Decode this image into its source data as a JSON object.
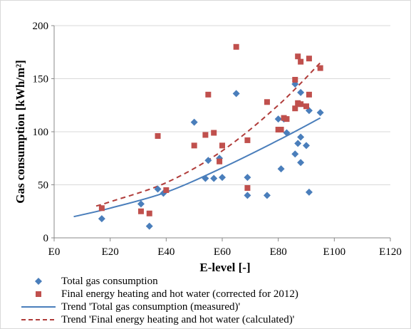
{
  "chart_data": {
    "type": "scatter",
    "title": "",
    "xlabel": "E-level [-]",
    "ylabel": "Gas consumption [kWh/m²]",
    "xlim": [
      0,
      120
    ],
    "ylim": [
      0,
      200
    ],
    "x_ticks": [
      0,
      20,
      40,
      60,
      80,
      100,
      120
    ],
    "x_tick_labels": [
      "E0",
      "E20",
      "E40",
      "E60",
      "E80",
      "E100",
      "E120"
    ],
    "y_ticks": [
      0,
      50,
      100,
      150,
      200
    ],
    "y_tick_labels": [
      "0",
      "50",
      "100",
      "150",
      "200"
    ],
    "grid": "horizontal",
    "legend_position": "bottom",
    "series": [
      {
        "name": "Total gas consumption",
        "marker": "diamond",
        "color": "#4a7ebb",
        "points": [
          [
            17,
            18
          ],
          [
            31,
            32
          ],
          [
            34,
            11
          ],
          [
            37,
            46
          ],
          [
            39,
            42
          ],
          [
            50,
            109
          ],
          [
            54,
            56
          ],
          [
            55,
            73
          ],
          [
            57,
            56
          ],
          [
            59,
            75
          ],
          [
            60,
            57
          ],
          [
            65,
            136
          ],
          [
            69,
            57
          ],
          [
            69,
            40
          ],
          [
            76,
            40
          ],
          [
            80,
            112
          ],
          [
            81,
            65
          ],
          [
            82,
            112
          ],
          [
            83,
            99
          ],
          [
            86,
            79
          ],
          [
            86,
            145
          ],
          [
            87,
            89
          ],
          [
            88,
            95
          ],
          [
            88,
            137
          ],
          [
            88,
            71
          ],
          [
            90,
            87
          ],
          [
            91,
            120
          ],
          [
            91,
            43
          ],
          [
            95,
            118
          ]
        ]
      },
      {
        "name": "Final energy heating and hot water (corrected for 2012)",
        "marker": "square",
        "color": "#c0504d",
        "points": [
          [
            17,
            28
          ],
          [
            31,
            25
          ],
          [
            34,
            23
          ],
          [
            37,
            96
          ],
          [
            40,
            45
          ],
          [
            50,
            87
          ],
          [
            54,
            97
          ],
          [
            55,
            135
          ],
          [
            57,
            99
          ],
          [
            59,
            72
          ],
          [
            60,
            87
          ],
          [
            65,
            180
          ],
          [
            69,
            92
          ],
          [
            69,
            47
          ],
          [
            76,
            128
          ],
          [
            80,
            102
          ],
          [
            81,
            102
          ],
          [
            82,
            113
          ],
          [
            83,
            112
          ],
          [
            86,
            122
          ],
          [
            86,
            149
          ],
          [
            87,
            171
          ],
          [
            87,
            127
          ],
          [
            88,
            166
          ],
          [
            88,
            126
          ],
          [
            90,
            124
          ],
          [
            91,
            169
          ],
          [
            91,
            135
          ],
          [
            95,
            160
          ]
        ]
      }
    ],
    "trendlines": [
      {
        "name": "Trend 'Total gas consumption (measured)'",
        "type": "exponential",
        "style": "solid",
        "color": "#4a7ebb",
        "x_range": [
          7,
          95
        ],
        "points": [
          [
            7,
            20
          ],
          [
            20,
            28
          ],
          [
            40,
            43
          ],
          [
            60,
            66
          ],
          [
            80,
            92
          ],
          [
            95,
            113
          ]
        ]
      },
      {
        "name": "Trend 'Final energy heating and hot water (calculated)'",
        "type": "exponential",
        "style": "dashed",
        "color": "#b03c3a",
        "x_range": [
          15,
          95
        ],
        "points": [
          [
            15,
            30
          ],
          [
            20,
            34
          ],
          [
            40,
            52
          ],
          [
            60,
            82
          ],
          [
            80,
            125
          ],
          [
            95,
            165
          ]
        ]
      }
    ]
  }
}
